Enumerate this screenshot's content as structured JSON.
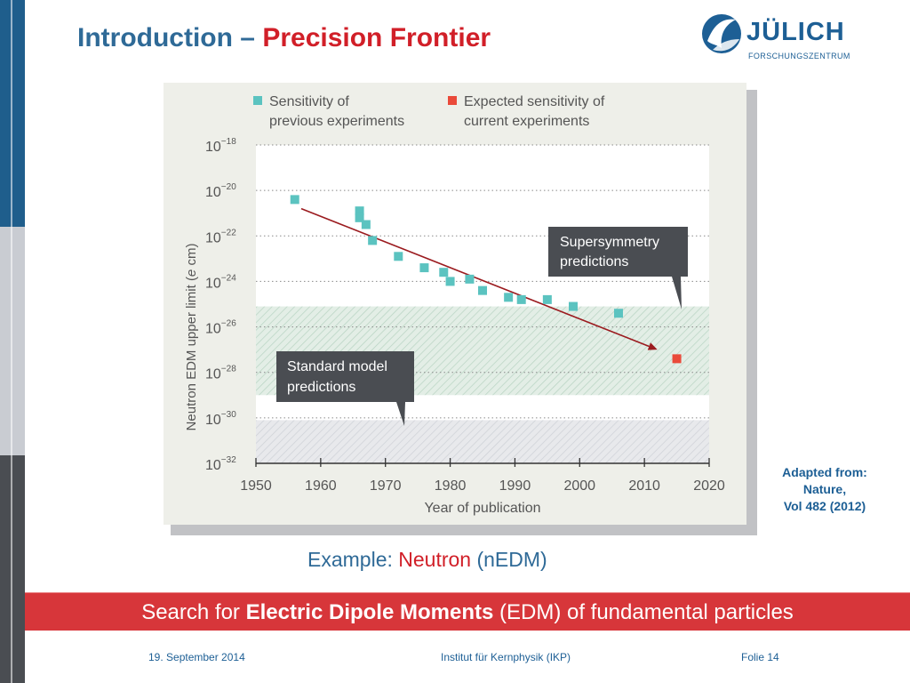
{
  "slide": {
    "title_main": "Introduction – ",
    "title_accent": "Precision Frontier",
    "logo_name": "JÜLICH",
    "logo_subtitle": "FORSCHUNGSZENTRUM",
    "caption_prefix": "Example: ",
    "caption_accent": "Neutron",
    "caption_suffix": " (nEDM)",
    "adapted_line1": "Adapted from:",
    "adapted_line2": "Nature,",
    "adapted_line3": "Vol 482 (2012)",
    "banner_prefix": "Search for ",
    "banner_bold": "Electric Dipole Moments",
    "banner_suffix": " (EDM) of fundamental particles",
    "footer_date": "19. September 2014",
    "footer_institute": "Institut für Kernphysik (IKP)",
    "footer_page": "Folie 14"
  },
  "colors": {
    "title_blue": "#2f6a97",
    "accent_red": "#d11f28",
    "banner_red": "#d7363a",
    "previous_marker": "#5bc3c0",
    "expected_marker": "#ea4a3a",
    "trend_line": "#9b1b1f",
    "callout_box": "#4a4d52"
  },
  "chart_data": {
    "type": "scatter",
    "title": "",
    "xlabel": "Year of publication",
    "ylabel": "Neutron EDM upper limit (e cm)",
    "ylabel_main": "Neutron EDM upper limit (",
    "ylabel_unit": "e",
    "ylabel_tail": " cm)",
    "y_scale": "log",
    "xlim": [
      1950,
      2020
    ],
    "ylim_exponents": [
      -32,
      -18
    ],
    "x_ticks": [
      "1950",
      "1960",
      "1970",
      "1980",
      "1990",
      "2000",
      "2010",
      "2020"
    ],
    "y_ticks": [
      {
        "exp": -18,
        "base": "10",
        "sup": "−18"
      },
      {
        "exp": -20,
        "base": "10",
        "sup": "−20"
      },
      {
        "exp": -22,
        "base": "10",
        "sup": "−22"
      },
      {
        "exp": -24,
        "base": "10",
        "sup": "−24"
      },
      {
        "exp": -26,
        "base": "10",
        "sup": "−26"
      },
      {
        "exp": -28,
        "base": "10",
        "sup": "−28"
      },
      {
        "exp": -30,
        "base": "10",
        "sup": "−30"
      },
      {
        "exp": -32,
        "base": "10",
        "sup": "−32"
      }
    ],
    "grid": "dotted horizontal",
    "legend_position": "top",
    "series": [
      {
        "name_line1": "Sensitivity of",
        "name_line2": "previous experiments",
        "name": "Sensitivity of previous experiments",
        "points": [
          {
            "x": 1956,
            "exp": -20.4
          },
          {
            "x": 1966,
            "exp": -20.9
          },
          {
            "x": 1966,
            "exp": -21.2
          },
          {
            "x": 1967,
            "exp": -21.5
          },
          {
            "x": 1968,
            "exp": -22.2
          },
          {
            "x": 1972,
            "exp": -22.9
          },
          {
            "x": 1976,
            "exp": -23.4
          },
          {
            "x": 1979,
            "exp": -23.6
          },
          {
            "x": 1980,
            "exp": -24.0
          },
          {
            "x": 1983,
            "exp": -23.9
          },
          {
            "x": 1985,
            "exp": -24.4
          },
          {
            "x": 1989,
            "exp": -24.7
          },
          {
            "x": 1991,
            "exp": -24.8
          },
          {
            "x": 1995,
            "exp": -24.8
          },
          {
            "x": 1999,
            "exp": -25.1
          },
          {
            "x": 2006,
            "exp": -25.4
          }
        ]
      },
      {
        "name_line1": "Expected sensitivity of",
        "name_line2": "current experiments",
        "name": "Expected sensitivity of current experiments",
        "points": [
          {
            "x": 2015,
            "exp": -27.4
          }
        ]
      }
    ],
    "trend_arrow": {
      "from": {
        "x": 1957,
        "exp": -20.8
      },
      "to": {
        "x": 2012,
        "exp": -27.0
      }
    },
    "bands": [
      {
        "label": "Supersymmetry predictions",
        "from_exp": -29.0,
        "to_exp": -25.1
      },
      {
        "label": "Standard model predictions",
        "from_exp": -32,
        "to_exp": -30.1
      }
    ],
    "callouts": [
      {
        "line1": "Supersymmetry",
        "line2": "predictions"
      },
      {
        "line1": "Standard model",
        "line2": "predictions"
      }
    ]
  }
}
